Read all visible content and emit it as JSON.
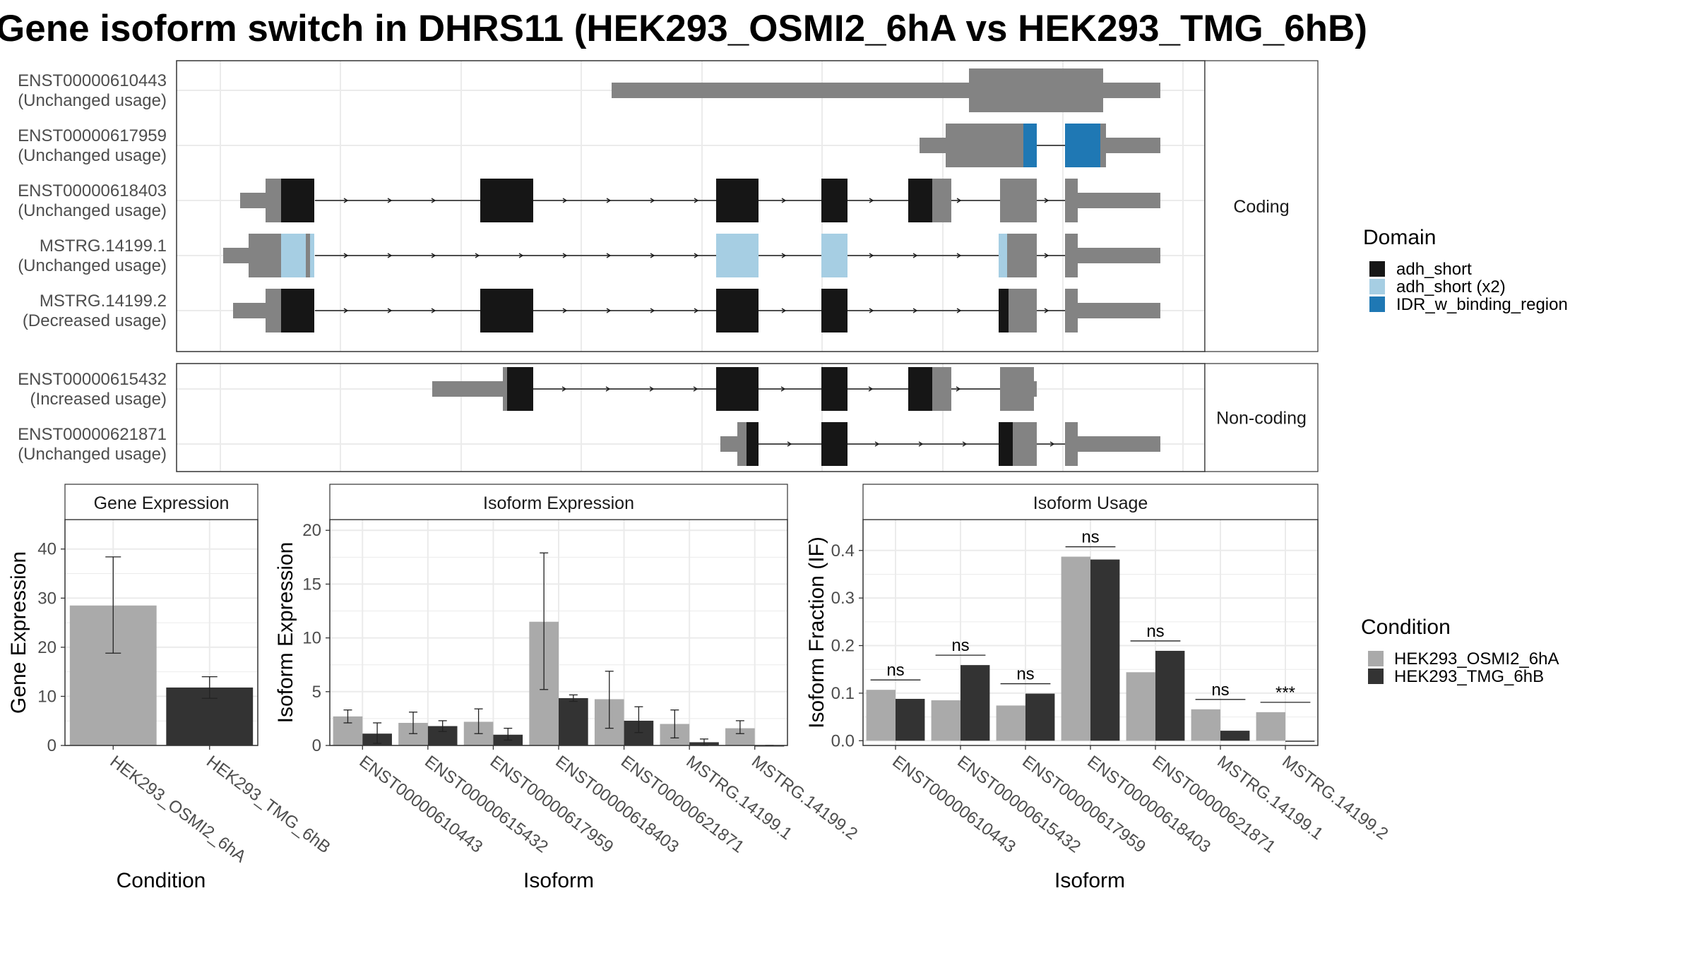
{
  "title": "Gene isoform switch in DHRS11 (HEK293_OSMI2_6hA vs HEK293_TMG_6hB)",
  "colors": {
    "utr": "#838383",
    "adh_short": "#161616",
    "adh_short_x2": "#a6cee3",
    "idr": "#1f78b4",
    "cond_a": "#aaaaaa",
    "cond_b": "#333333",
    "grid": "#ebebeb",
    "frame": "#333333",
    "strip": "#ffffff"
  },
  "structure": {
    "facets": [
      "Coding",
      "Non-coding"
    ],
    "transcripts": [
      {
        "id": "ENST00000610443",
        "usage": "(Unchanged usage)",
        "facet": "Coding"
      },
      {
        "id": "ENST00000617959",
        "usage": "(Unchanged usage)",
        "facet": "Coding"
      },
      {
        "id": "ENST00000618403",
        "usage": "(Unchanged usage)",
        "facet": "Coding"
      },
      {
        "id": "MSTRG.14199.1",
        "usage": "(Unchanged usage)",
        "facet": "Coding"
      },
      {
        "id": "MSTRG.14199.2",
        "usage": "(Decreased usage)",
        "facet": "Coding"
      },
      {
        "id": "ENST00000615432",
        "usage": "(Increased usage)",
        "facet": "Non-coding"
      },
      {
        "id": "ENST00000621871",
        "usage": "(Unchanged usage)",
        "facet": "Non-coding"
      }
    ]
  },
  "domain_legend": {
    "title": "Domain",
    "items": [
      {
        "label": "adh_short",
        "color_key": "adh_short"
      },
      {
        "label": "adh_short (x2)",
        "color_key": "adh_short_x2"
      },
      {
        "label": "IDR_w_binding_region",
        "color_key": "idr"
      }
    ]
  },
  "condition_legend": {
    "title": "Condition",
    "items": [
      {
        "label": "HEK293_OSMI2_6hA",
        "color_key": "cond_a"
      },
      {
        "label": "HEK293_TMG_6hB",
        "color_key": "cond_b"
      }
    ]
  },
  "chart_data": [
    {
      "type": "bar",
      "title": "Gene Expression",
      "xlabel": "Condition",
      "ylabel": "Gene Expression",
      "ylim": [
        0,
        46
      ],
      "yticks": [
        0,
        10,
        20,
        30,
        40
      ],
      "categories": [
        "HEK293_OSMI2_6hA",
        "HEK293_TMG_6hB"
      ],
      "values": [
        28.5,
        11.8
      ],
      "errors": [
        [
          18.8,
          38.4
        ],
        [
          9.6,
          14.0
        ]
      ]
    },
    {
      "type": "bar",
      "title": "Isoform Expression",
      "xlabel": "Isoform",
      "ylabel": "Isoform Expression",
      "ylim": [
        0,
        21
      ],
      "yticks": [
        0,
        5,
        10,
        15,
        20
      ],
      "categories": [
        "ENST00000610443",
        "ENST00000615432",
        "ENST00000617959",
        "ENST00000618403",
        "ENST00000621871",
        "MSTRG.14199.1",
        "MSTRG.14199.2"
      ],
      "series": [
        {
          "name": "HEK293_OSMI2_6hA",
          "values": [
            2.7,
            2.1,
            2.2,
            11.5,
            4.3,
            2.0,
            1.6
          ],
          "errors": [
            [
              2.1,
              3.3
            ],
            [
              1.1,
              3.1
            ],
            [
              1.1,
              3.4
            ],
            [
              5.2,
              17.9
            ],
            [
              1.6,
              6.9
            ],
            [
              0.7,
              3.3
            ],
            [
              1.1,
              2.3
            ]
          ]
        },
        {
          "name": "HEK293_TMG_6hB",
          "values": [
            1.1,
            1.8,
            1.0,
            4.4,
            2.3,
            0.3,
            0.0
          ],
          "errors": [
            [
              0.2,
              2.1
            ],
            [
              1.3,
              2.3
            ],
            [
              0.5,
              1.6
            ],
            [
              4.1,
              4.7
            ],
            [
              1.2,
              3.6
            ],
            [
              0.0,
              0.6
            ],
            [
              0.0,
              0.0
            ]
          ]
        }
      ]
    },
    {
      "type": "bar",
      "title": "Isoform Usage",
      "xlabel": "Isoform",
      "ylabel": "Isoform Fraction (IF)",
      "ylim": [
        -0.01,
        0.465
      ],
      "yticks": [
        0.0,
        0.1,
        0.2,
        0.3,
        0.4
      ],
      "ytick_labels": [
        "0.0",
        "0.1",
        "0.2",
        "0.3",
        "0.4"
      ],
      "categories": [
        "ENST00000610443",
        "ENST00000615432",
        "ENST00000617959",
        "ENST00000618403",
        "ENST00000621871",
        "MSTRG.14199.1",
        "MSTRG.14199.2"
      ],
      "series": [
        {
          "name": "HEK293_OSMI2_6hA",
          "values": [
            0.107,
            0.085,
            0.074,
            0.387,
            0.144,
            0.066,
            0.06
          ]
        },
        {
          "name": "HEK293_TMG_6hB",
          "values": [
            0.088,
            0.159,
            0.099,
            0.381,
            0.189,
            0.021,
            0.0
          ]
        }
      ],
      "significance": [
        "ns",
        "ns",
        "ns",
        "ns",
        "ns",
        "ns",
        "***"
      ]
    }
  ]
}
